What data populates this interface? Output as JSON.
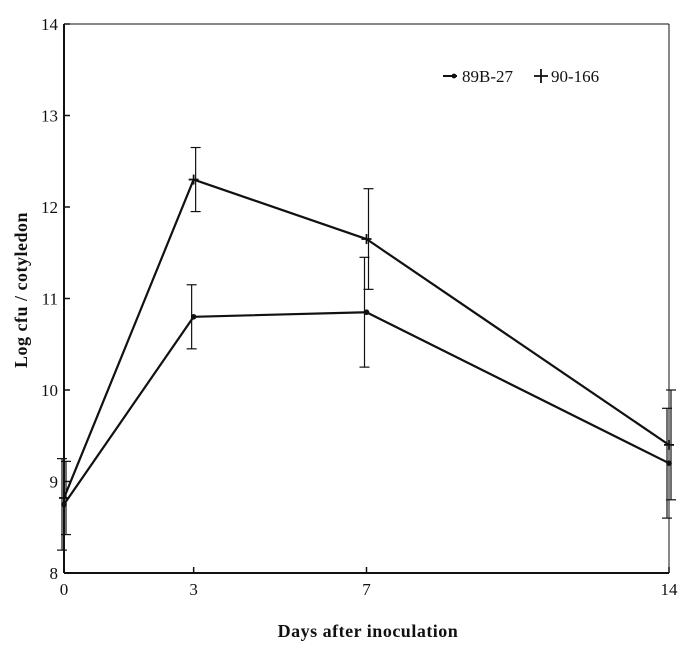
{
  "chart_data": {
    "type": "line",
    "x": [
      0,
      3,
      7,
      14
    ],
    "x_tick_labels": [
      "0",
      "3",
      "7",
      "14"
    ],
    "y_ticks": [
      8,
      9,
      10,
      11,
      12,
      13,
      14
    ],
    "ylim": [
      8,
      14
    ],
    "xlabel": "Days after inoculation",
    "ylabel": "Log cfu / cotyledon",
    "legend_position": "top-right",
    "grid": false,
    "series": [
      {
        "name": "89B-27",
        "marker": "dot",
        "values": [
          8.75,
          10.8,
          10.85,
          9.2
        ],
        "errors": [
          0.5,
          0.35,
          0.6,
          0.6
        ]
      },
      {
        "name": "90-166",
        "marker": "plus",
        "values": [
          8.82,
          12.3,
          11.65,
          9.4
        ],
        "errors": [
          0.4,
          0.35,
          0.55,
          0.6
        ]
      }
    ]
  }
}
